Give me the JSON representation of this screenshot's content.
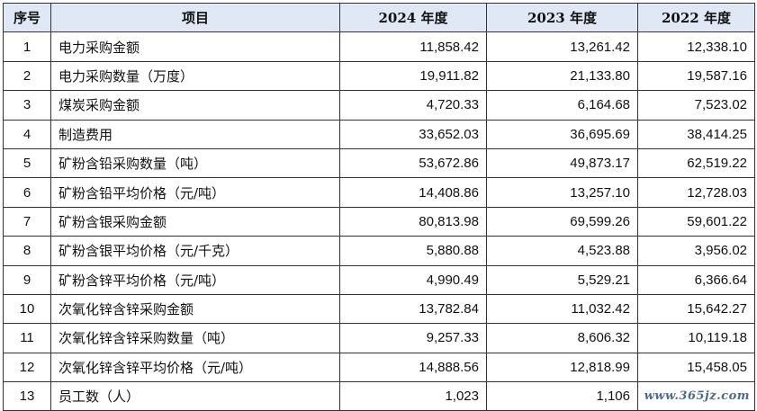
{
  "table": {
    "headers": [
      "序号",
      "项目",
      "2024 年度",
      "2023 年度",
      "2022 年度"
    ],
    "rows": [
      {
        "seq": "1",
        "item": "电力采购金额",
        "y2024": "11,858.42",
        "y2023": "13,261.42",
        "y2022": "12,338.10"
      },
      {
        "seq": "2",
        "item": "电力采购数量（万度）",
        "y2024": "19,911.82",
        "y2023": "21,133.80",
        "y2022": "19,587.16"
      },
      {
        "seq": "3",
        "item": "煤炭采购金额",
        "y2024": "4,720.33",
        "y2023": "6,164.68",
        "y2022": "7,523.02"
      },
      {
        "seq": "4",
        "item": "制造费用",
        "y2024": "33,652.03",
        "y2023": "36,695.69",
        "y2022": "38,414.25"
      },
      {
        "seq": "5",
        "item": "矿粉含铅采购数量（吨）",
        "y2024": "53,672.86",
        "y2023": "49,873.17",
        "y2022": "62,519.22"
      },
      {
        "seq": "6",
        "item": "矿粉含铅平均价格（元/吨）",
        "y2024": "14,408.86",
        "y2023": "13,257.10",
        "y2022": "12,728.03"
      },
      {
        "seq": "7",
        "item": "矿粉含银采购金额",
        "y2024": "80,813.98",
        "y2023": "69,599.26",
        "y2022": "59,601.22"
      },
      {
        "seq": "8",
        "item": "矿粉含银平均价格（元/千克）",
        "y2024": "5,880.88",
        "y2023": "4,523.88",
        "y2022": "3,956.02"
      },
      {
        "seq": "9",
        "item": "矿粉含锌平均价格（元/吨）",
        "y2024": "4,990.49",
        "y2023": "5,529.21",
        "y2022": "6,366.64"
      },
      {
        "seq": "10",
        "item": "次氧化锌含锌采购金额",
        "y2024": "13,782.84",
        "y2023": "11,032.42",
        "y2022": "15,642.27"
      },
      {
        "seq": "11",
        "item": "次氧化锌含锌采购数量（吨）",
        "y2024": "9,257.33",
        "y2023": "8,606.32",
        "y2022": "10,119.18"
      },
      {
        "seq": "12",
        "item": "次氧化锌含锌平均价格（元/吨）",
        "y2024": "14,888.56",
        "y2023": "12,818.99",
        "y2022": "15,458.05"
      },
      {
        "seq": "13",
        "item": "员工数（人）",
        "y2024": "1,023",
        "y2023": "1,106",
        "y2022": ""
      }
    ]
  },
  "watermark": "www.365jz.com",
  "colors": {
    "header_bg": "#dfe8f4",
    "border": "#333333",
    "watermark": "#2d4f7d"
  }
}
